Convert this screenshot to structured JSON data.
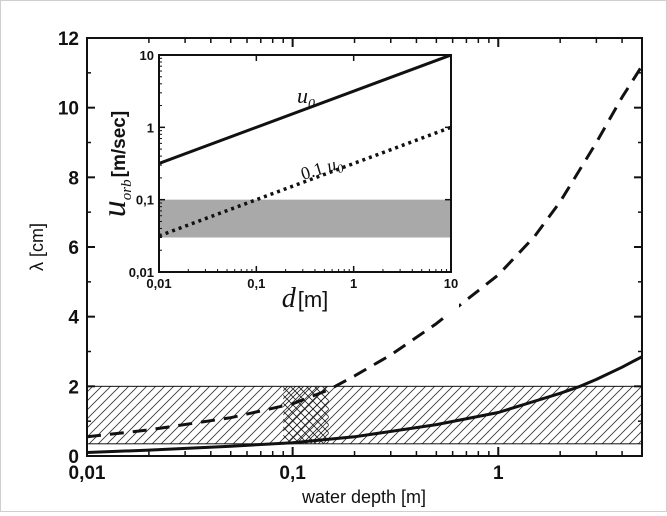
{
  "chart_data": [
    {
      "type": "line",
      "xlabel": "water depth [m]",
      "ylabel": "λ [cm]",
      "xscale": "log",
      "xlim": [
        0.01,
        5
      ],
      "ylim": [
        0,
        12
      ],
      "xticks": [
        {
          "v": 0.01,
          "label": "0,01"
        },
        {
          "v": 0.1,
          "label": "0,1"
        },
        {
          "v": 1,
          "label": "1"
        }
      ],
      "yticks": [
        {
          "v": 0,
          "label": "0"
        },
        {
          "v": 2,
          "label": "2"
        },
        {
          "v": 4,
          "label": "4"
        },
        {
          "v": 6,
          "label": "6"
        },
        {
          "v": 8,
          "label": "8"
        },
        {
          "v": 10,
          "label": "10"
        },
        {
          "v": 12,
          "label": "12"
        }
      ],
      "series": [
        {
          "style": "solid",
          "color": "#111111",
          "x": [
            0.01,
            0.02,
            0.05,
            0.1,
            0.2,
            0.5,
            1,
            2,
            2.5,
            3,
            4,
            5
          ],
          "y": [
            0.1,
            0.17,
            0.28,
            0.38,
            0.55,
            0.9,
            1.25,
            1.8,
            2.0,
            2.2,
            2.55,
            2.85
          ]
        },
        {
          "style": "dashed",
          "color": "#111111",
          "x": [
            0.01,
            0.02,
            0.05,
            0.1,
            0.15,
            0.2,
            0.3,
            0.5,
            1,
            1.5,
            2,
            3,
            4,
            5
          ],
          "y": [
            0.55,
            0.75,
            1.1,
            1.5,
            1.9,
            2.3,
            2.9,
            3.8,
            5.2,
            6.3,
            7.3,
            9.0,
            10.3,
            11.2
          ]
        }
      ],
      "regions": [
        {
          "kind": "hatched-band",
          "x": [
            0.01,
            5
          ],
          "y": [
            0.35,
            2
          ],
          "hatch": "diagonal"
        },
        {
          "kind": "cross-hatched-band",
          "x": [
            0.09,
            0.15
          ],
          "y": [
            0.35,
            2
          ],
          "hatch": "cross"
        }
      ]
    },
    {
      "type": "line",
      "inset": true,
      "xlabel_symbol": "d",
      "xlabel_unit": "[m]",
      "ylabel_symbol": "u",
      "ylabel_subscript": "orb",
      "ylabel_unit": "[m/sec]",
      "xscale": "log",
      "yscale": "log",
      "xlim": [
        0.01,
        10
      ],
      "ylim": [
        0.01,
        10
      ],
      "xticks": [
        {
          "v": 0.01,
          "label": "0,01"
        },
        {
          "v": 0.1,
          "label": "0,1"
        },
        {
          "v": 1,
          "label": "1"
        },
        {
          "v": 10,
          "label": "10"
        }
      ],
      "yticks": [
        {
          "v": 0.01,
          "label": "0,01"
        },
        {
          "v": 0.1,
          "label": "0,1"
        },
        {
          "v": 1,
          "label": "1"
        },
        {
          "v": 10,
          "label": "10"
        }
      ],
      "series": [
        {
          "style": "solid",
          "color": "#111111",
          "label_main": "u",
          "label_sub": "0",
          "label_prefix": "",
          "x": [
            0.01,
            10
          ],
          "y": [
            0.316,
            10
          ]
        },
        {
          "style": "dotted",
          "color": "#111111",
          "label_main": "u",
          "label_sub": "0",
          "label_prefix": "0.1 ",
          "x": [
            0.01,
            10
          ],
          "y": [
            0.0316,
            1
          ]
        }
      ],
      "regions": [
        {
          "kind": "band",
          "y": [
            0.03,
            0.1
          ],
          "color": "#a9a9a9"
        }
      ]
    }
  ]
}
